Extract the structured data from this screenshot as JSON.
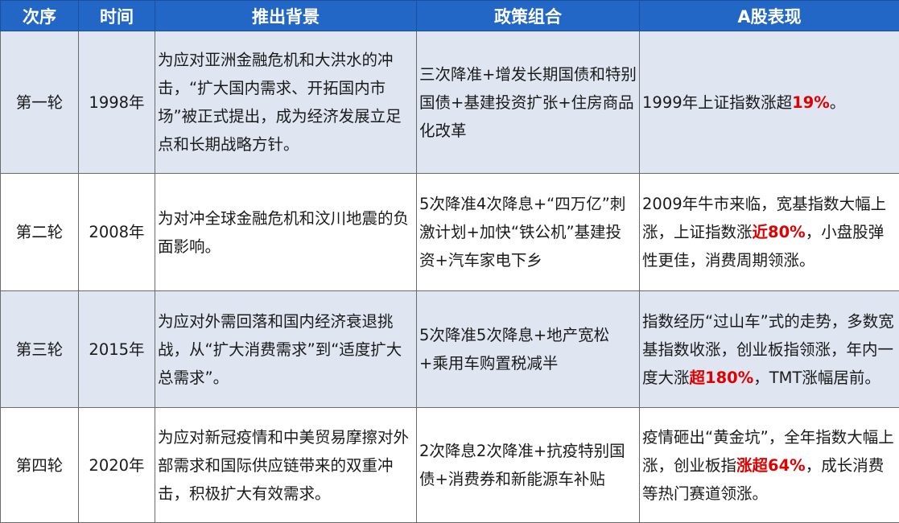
{
  "headers": [
    "次序",
    "时间",
    "推出背景",
    "政策组合",
    "A股表现"
  ],
  "colors": {
    "header_bg": "#2367c6",
    "header_text": "#ffffff",
    "band_bg": "#dfe6f2",
    "highlight": "#e00000"
  },
  "rows": [
    {
      "round": "第一轮",
      "year": "1998年",
      "background": "为应对亚洲金融危机和大洪水的冲击，“扩大国内需求、开拓国内市场”被正式提出，成为经济发展立足点和长期战略方针。",
      "policy": "三次降准+增发长期国债和特别国债+基建投资扩张+住房商品化改革",
      "perf_a": "1999年上证指数涨超",
      "perf_hl": "19%",
      "perf_b": "。"
    },
    {
      "round": "第二轮",
      "year": "2008年",
      "background": "为对冲全球金融危机和汶川地震的负面影响。",
      "policy": "5次降准4次降息+“四万亿”刺激计划+加快“铁公机”基建投资+汽车家电下乡",
      "perf_a": "2009年牛市来临，宽基指数大幅上涨，上证指数涨",
      "perf_hl": "近80%",
      "perf_b": "，小盘股弹性更佳，消费周期领涨。"
    },
    {
      "round": "第三轮",
      "year": "2015年",
      "background": "为应对外需回落和国内经济衰退挑战，从“扩大消费需求”到“适度扩大总需求”。",
      "policy": "5次降准5次降息+地产宽松+乘用车购置税减半",
      "perf_a": "指数经历“过山车”式的走势，多数宽基指数收涨，创业板指领涨，年内一度大涨",
      "perf_hl": "超180%",
      "perf_b": "，TMT涨幅居前。"
    },
    {
      "round": "第四轮",
      "year": "2020年",
      "background": "为应对新冠疫情和中美贸易摩擦对外部需求和国际供应链带来的双重冲击，积极扩大有效需求。",
      "policy": "2次降息2次降准+抗疫特别国债+消费券和新能源车补贴",
      "perf_a": "疫情砸出“黄金坑”，全年指数大幅上涨，创业板指",
      "perf_hl": "涨超64%",
      "perf_b": "，成长消费等热门赛道领涨。"
    }
  ]
}
